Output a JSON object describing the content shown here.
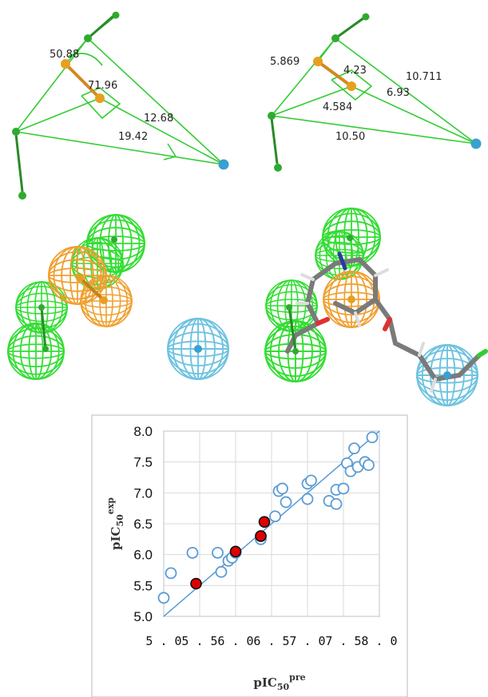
{
  "panels": {
    "top_left": {
      "labels": [
        "50.88",
        "71.96",
        "12.68",
        "19.42"
      ]
    },
    "top_right": {
      "labels": [
        "5.869",
        "4.23",
        "10.711",
        "6.93",
        "4.584",
        "10.50"
      ]
    }
  },
  "colors": {
    "hbd": "#33cc33",
    "aromatic": "#f0a030",
    "hydrophobic": "#6fc3e0",
    "point_open": "#5b9bd5",
    "point_filled": "#e00000",
    "fit_line": "#5b9bd5"
  },
  "chart_data": {
    "type": "scatter",
    "xlabel_main": "pIC",
    "xlabel_sub": "50",
    "xlabel_sup": "pre",
    "ylabel_main": "pIC",
    "ylabel_sub": "50",
    "ylabel_sup": "exp",
    "xlim": [
      5.0,
      8.0
    ],
    "ylim": [
      5.0,
      8.0
    ],
    "xticks": [
      "5.0",
      "5.5",
      "6.0",
      "6.5",
      "7.0",
      "7.5",
      "8.0"
    ],
    "yticks": [
      "5.0",
      "5.5",
      "6.0",
      "6.5",
      "7.0",
      "7.5",
      "8.0"
    ],
    "grid": true,
    "fit_line": [
      [
        5.0,
        5.0
      ],
      [
        8.0,
        8.0
      ]
    ],
    "series": [
      {
        "points": [
          [
            5.0,
            5.3
          ],
          [
            5.1,
            5.7
          ],
          [
            5.4,
            6.03
          ],
          [
            5.75,
            6.03
          ],
          [
            5.8,
            5.72
          ],
          [
            5.9,
            5.9
          ],
          [
            5.95,
            5.95
          ],
          [
            6.0,
            6.03
          ],
          [
            6.35,
            6.25
          ],
          [
            6.35,
            6.3
          ],
          [
            6.55,
            6.62
          ],
          [
            6.6,
            7.03
          ],
          [
            6.65,
            7.07
          ],
          [
            6.7,
            6.85
          ],
          [
            7.0,
            6.9
          ],
          [
            7.0,
            7.15
          ],
          [
            7.05,
            7.2
          ],
          [
            7.3,
            6.87
          ],
          [
            7.4,
            6.82
          ],
          [
            7.4,
            7.05
          ],
          [
            7.5,
            7.07
          ],
          [
            7.55,
            7.48
          ],
          [
            7.6,
            7.35
          ],
          [
            7.65,
            7.72
          ],
          [
            7.7,
            7.42
          ],
          [
            7.8,
            7.5
          ],
          [
            7.85,
            7.45
          ],
          [
            7.9,
            7.9
          ]
        ],
        "filled": false
      },
      {
        "points": [
          [
            5.45,
            5.53
          ],
          [
            6.0,
            6.05
          ],
          [
            6.35,
            6.3
          ],
          [
            6.4,
            6.53
          ]
        ],
        "filled": true
      }
    ]
  }
}
